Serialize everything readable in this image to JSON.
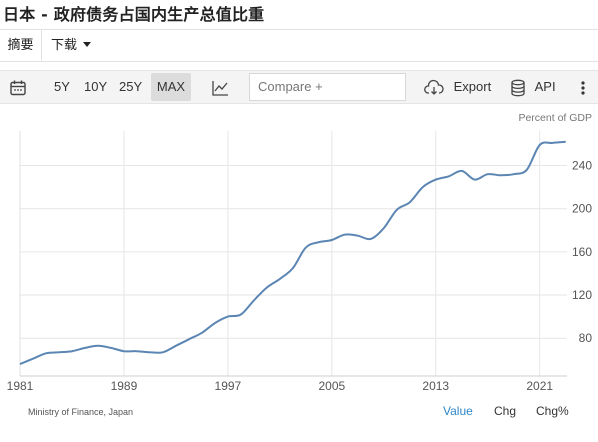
{
  "page": {
    "title": "日本 - 政府债务占国内生产总值比重"
  },
  "tabs": {
    "summary": "摘要",
    "download": "下载"
  },
  "toolbar": {
    "range_5y": "5Y",
    "range_10y": "10Y",
    "range_25y": "25Y",
    "range_max": "MAX",
    "compare_placeholder": "Compare +",
    "export_label": "Export",
    "api_label": "API",
    "icons": {
      "calendar": "calendar-icon",
      "chart_type": "line-chart-icon",
      "export": "cloud-download-icon",
      "api": "database-icon",
      "more": "more-vertical-icon"
    }
  },
  "chart_data": {
    "type": "line",
    "unit_label": "Percent of GDP",
    "color": "#5b86b3",
    "x_ticks": [
      "1981",
      "1989",
      "1997",
      "2005",
      "2013",
      "2021"
    ],
    "y_ticks": [
      80,
      120,
      160,
      200,
      240
    ],
    "ylim": [
      45,
      272
    ],
    "xlim": [
      1981,
      2023.1
    ],
    "grid": true,
    "series": [
      {
        "x": [
          1981,
          1982,
          1983,
          1984,
          1985,
          1986,
          1987,
          1988,
          1989,
          1990,
          1991,
          1992,
          1993,
          1994,
          1995,
          1996,
          1997,
          1998,
          1999,
          2000,
          2001,
          2002,
          2003,
          2004,
          2005,
          2006,
          2007,
          2008,
          2009,
          2010,
          2011,
          2012,
          2013,
          2014,
          2015,
          2016,
          2017,
          2018,
          2019,
          2020,
          2021,
          2022,
          2023
        ],
        "values": [
          56,
          61,
          66,
          67,
          68,
          71,
          73,
          71,
          68,
          68,
          67,
          67,
          73,
          79,
          85,
          94,
          100,
          102,
          115,
          127,
          135,
          145,
          164,
          169,
          171,
          176,
          175,
          172,
          182,
          199,
          206,
          220,
          227,
          230,
          235,
          227,
          232,
          231,
          232,
          236,
          259,
          261,
          262
        ]
      }
    ]
  },
  "footer": {
    "source": "Ministry of Finance, Japan",
    "mode_value": "Value",
    "mode_chg": "Chg",
    "mode_chg_pct": "Chg%"
  }
}
